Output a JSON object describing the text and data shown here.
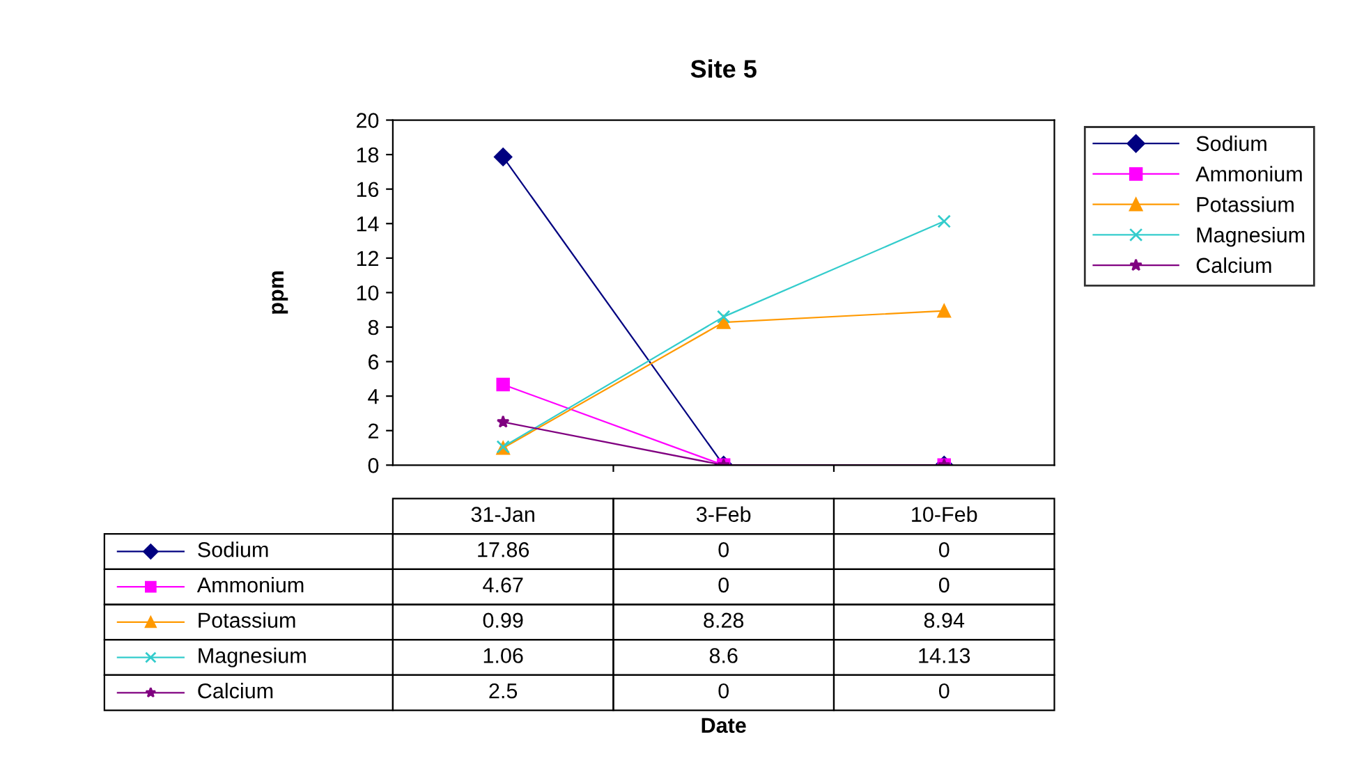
{
  "chart_data": {
    "type": "line",
    "title": "Site 5",
    "annotations": [
      "Date"
    ],
    "ylabel": "ppm",
    "categories": [
      "31-Jan",
      "3-Feb",
      "10-Feb"
    ],
    "series": [
      {
        "name": "Sodium",
        "color": "#000080",
        "marker": "diamond",
        "values": [
          17.86,
          0,
          0
        ]
      },
      {
        "name": "Ammonium",
        "color": "#ff00ff",
        "marker": "square",
        "values": [
          4.67,
          0,
          0
        ]
      },
      {
        "name": "Potassium",
        "color": "#ff9900",
        "marker": "triangle",
        "values": [
          0.99,
          8.28,
          8.94
        ]
      },
      {
        "name": "Magnesium",
        "color": "#33cccc",
        "marker": "cross",
        "values": [
          1.06,
          8.6,
          14.13
        ]
      },
      {
        "name": "Calcium",
        "color": "#800080",
        "marker": "star",
        "values": [
          2.5,
          0,
          0
        ]
      }
    ],
    "ylim": [
      0,
      20
    ],
    "yticks": [
      0,
      2,
      4,
      6,
      8,
      10,
      12,
      14,
      16,
      18,
      20
    ],
    "grid": false,
    "legend": "right",
    "data_labels": true,
    "tick_labels": "y"
  }
}
